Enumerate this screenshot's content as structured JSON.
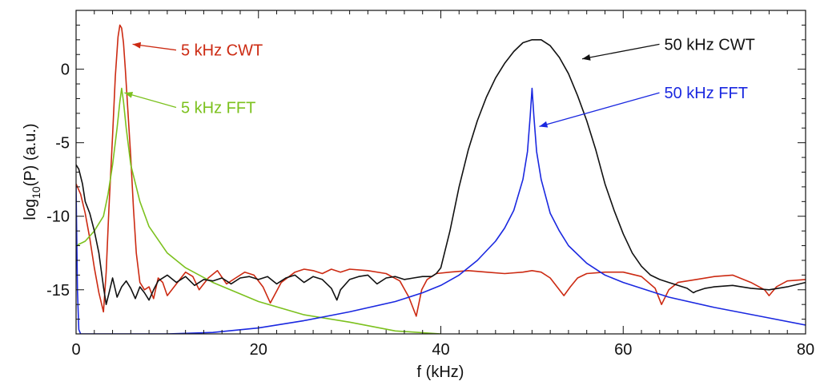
{
  "chart_data": {
    "type": "line",
    "title": "",
    "xlabel": "f (kHz)",
    "ylabel_main": "log",
    "ylabel_sub": "10",
    "ylabel_tail": "(P)  (a.u.)",
    "xlim": [
      0,
      80
    ],
    "ylim": [
      -18,
      4
    ],
    "xticks": [
      0,
      20,
      40,
      60,
      80
    ],
    "yticks": [
      0,
      -5,
      -10,
      -15
    ],
    "grid": false,
    "legend": "none",
    "series": [
      {
        "name": "5 kHz CWT",
        "color": "#cc2a12",
        "x": [
          0,
          0.5,
          1,
          1.5,
          2,
          2.5,
          3,
          3.3,
          3.6,
          4,
          4.3,
          4.6,
          4.8,
          5,
          5.2,
          5.4,
          5.7,
          6,
          6.3,
          6.6,
          7,
          7.5,
          8,
          8.5,
          9,
          9.5,
          10,
          11,
          12,
          12.8,
          13.5,
          14.5,
          15.5,
          16.5,
          17.5,
          18.5,
          19.5,
          20.5,
          21.3,
          22.5,
          24,
          25,
          26,
          27,
          28,
          29,
          30,
          32,
          34,
          35.5,
          36.5,
          37.3,
          37.9,
          38.5,
          39.5,
          41,
          43,
          45,
          47,
          49,
          50,
          51,
          52,
          53,
          53.5,
          54.2,
          55,
          56,
          58,
          60,
          62,
          63.5,
          64.2,
          65,
          66,
          68,
          70,
          72,
          74,
          75.5,
          76,
          76.8,
          78,
          80
        ],
        "y": [
          -7.8,
          -8.5,
          -9.8,
          -11.5,
          -13.5,
          -15.2,
          -16.5,
          -13.8,
          -9.5,
          -4.5,
          -0.5,
          2.2,
          3,
          2.8,
          1.8,
          0,
          -3,
          -6,
          -9.5,
          -12.5,
          -14.5,
          -15,
          -14.8,
          -15.6,
          -14.2,
          -14.5,
          -15.4,
          -14.6,
          -13.8,
          -14.1,
          -15,
          -14.2,
          -13.7,
          -14.6,
          -14.2,
          -13.8,
          -14,
          -14.8,
          -15.9,
          -14.5,
          -13.8,
          -13.6,
          -13.7,
          -13.9,
          -13.6,
          -13.8,
          -13.6,
          -13.7,
          -13.9,
          -14.4,
          -15.5,
          -16.8,
          -15,
          -14.3,
          -13.9,
          -13.8,
          -13.7,
          -13.8,
          -13.9,
          -13.8,
          -13.7,
          -13.8,
          -14.2,
          -15,
          -15.4,
          -14.8,
          -14.2,
          -13.9,
          -13.8,
          -13.8,
          -14.1,
          -14.9,
          -16,
          -15,
          -14.5,
          -14.3,
          -14.1,
          -14,
          -14.5,
          -15,
          -15.4,
          -14.8,
          -14.4,
          -14.3
        ]
      },
      {
        "name": "5 kHz FFT",
        "color": "#7cc11e",
        "x": [
          0,
          1,
          2,
          3,
          3.5,
          4,
          4.5,
          4.8,
          5,
          5.2,
          5.5,
          6,
          7,
          8,
          10,
          12,
          15,
          20,
          25,
          30,
          35,
          40
        ],
        "y": [
          -12,
          -11.7,
          -11,
          -10,
          -8.5,
          -6.5,
          -4,
          -2.2,
          -1.3,
          -2.2,
          -4,
          -6.5,
          -9,
          -10.7,
          -12.5,
          -13.5,
          -14.5,
          -15.8,
          -16.7,
          -17.2,
          -17.8,
          -18
        ]
      },
      {
        "name": "50 kHz CWT",
        "color": "#111111",
        "x": [
          0,
          0.3,
          0.7,
          1,
          1.5,
          2,
          2.5,
          3,
          3.3,
          3.7,
          4,
          4.5,
          5,
          5.5,
          6,
          6.5,
          7,
          7.5,
          8,
          8.5,
          9,
          10,
          11,
          12,
          13,
          14,
          15,
          16,
          17,
          18,
          19,
          20,
          21,
          22,
          23,
          24,
          25,
          26,
          27,
          28,
          28.6,
          29,
          30,
          31,
          32,
          33,
          34,
          35,
          36,
          37,
          38,
          39,
          39.5,
          40,
          41,
          42,
          43,
          44,
          45,
          46,
          47,
          48,
          49,
          50,
          51,
          52,
          53,
          54,
          55,
          56,
          57,
          58,
          59,
          60,
          61,
          62,
          63,
          64,
          65,
          66,
          67,
          67.7,
          68,
          69,
          70,
          72,
          74,
          76,
          78,
          80
        ],
        "y": [
          -6.5,
          -6.8,
          -7.8,
          -9,
          -9.8,
          -11,
          -12.5,
          -14.8,
          -16,
          -15,
          -14.2,
          -15.5,
          -14.8,
          -14.4,
          -14.9,
          -15.6,
          -14.8,
          -15.2,
          -15.7,
          -15,
          -14.4,
          -14,
          -14.5,
          -14.1,
          -14.7,
          -14.3,
          -14.4,
          -14.2,
          -14.6,
          -14.2,
          -14.1,
          -14.3,
          -14.1,
          -14.6,
          -14.2,
          -14,
          -14.5,
          -14.1,
          -14.3,
          -14.9,
          -15.7,
          -15,
          -14.3,
          -14.1,
          -14,
          -14.6,
          -14.2,
          -14.1,
          -14.3,
          -14.2,
          -14.1,
          -14.1,
          -13.9,
          -13.5,
          -11,
          -8,
          -5.5,
          -3.5,
          -1.9,
          -0.6,
          0.4,
          1.2,
          1.8,
          2,
          2,
          1.6,
          0.8,
          -0.3,
          -1.8,
          -3.5,
          -5.5,
          -7.8,
          -9.6,
          -11.2,
          -12.5,
          -13.4,
          -14,
          -14.3,
          -14.5,
          -14.7,
          -14.9,
          -15.2,
          -15.1,
          -14.9,
          -14.8,
          -14.7,
          -14.9,
          -15,
          -14.8,
          -14.5
        ]
      },
      {
        "name": "50 kHz FFT",
        "color": "#1a28e0",
        "x": [
          0,
          0.15,
          0.3,
          0.5,
          3,
          6,
          8,
          10,
          15,
          20,
          25,
          30,
          35,
          38,
          40,
          42,
          44,
          46,
          47,
          48,
          49,
          49.5,
          49.8,
          50,
          50.2,
          50.5,
          51,
          52,
          53,
          54,
          56,
          58,
          60,
          65,
          70,
          75,
          80
        ],
        "y": [
          -8,
          -15,
          -17.7,
          -18,
          -18,
          -18,
          -18,
          -18,
          -17.9,
          -17.6,
          -17.1,
          -16.5,
          -15.8,
          -15.2,
          -14.7,
          -14,
          -13,
          -11.7,
          -10.8,
          -9.6,
          -7.5,
          -5.6,
          -3.2,
          -1.3,
          -3.2,
          -5.6,
          -7.5,
          -9.8,
          -11,
          -12,
          -13.2,
          -14,
          -14.5,
          -15.5,
          -16.2,
          -16.8,
          -17.4
        ]
      }
    ],
    "annotations": [
      {
        "text": "5 kHz CWT",
        "color": "#cc2a12",
        "x": 11.5,
        "y": 1.3,
        "ax": 6.2,
        "ay": 1.7
      },
      {
        "text": "5 kHz FFT",
        "color": "#7cc11e",
        "x": 11.5,
        "y": -2.6,
        "ax": 5.3,
        "ay": -1.6
      },
      {
        "text": "50 kHz CWT",
        "color": "#111111",
        "x": 64.5,
        "y": 1.7,
        "ax": 55.5,
        "ay": 0.7
      },
      {
        "text": "50 kHz FFT",
        "color": "#1a28e0",
        "x": 64.5,
        "y": -1.6,
        "ax": 50.8,
        "ay": -3.9
      }
    ]
  }
}
